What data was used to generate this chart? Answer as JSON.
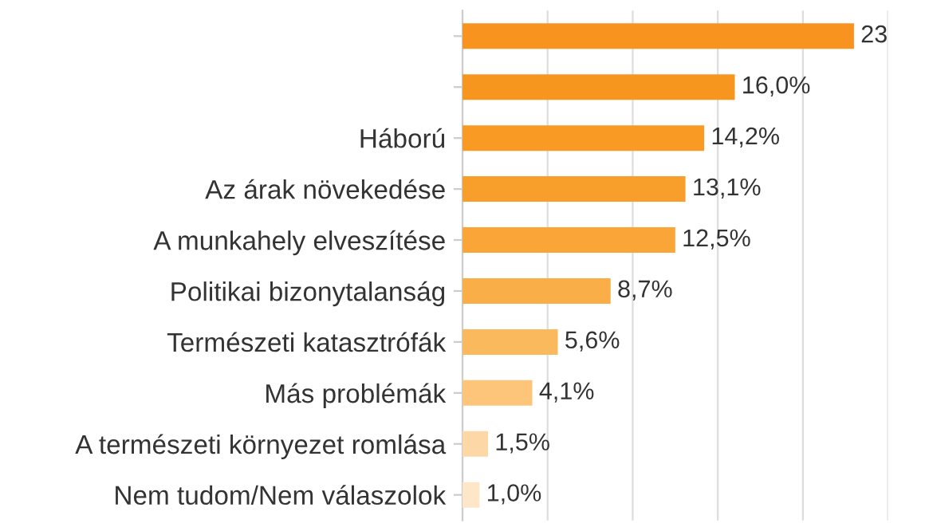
{
  "chart_data": {
    "type": "bar",
    "orientation": "horizontal",
    "categories": [
      null,
      null,
      "Háború",
      "Az árak növekedése",
      "A munkahely elveszítése",
      "Politikai bizonytalanság",
      "Természeti katasztrófák",
      "Más problémák",
      "A természeti környezet romlása",
      "Nem tudom/Nem válaszolok"
    ],
    "values": [
      23,
      16.0,
      14.2,
      13.1,
      12.5,
      8.7,
      5.6,
      4.1,
      1.5,
      1.0
    ],
    "value_labels": [
      "23",
      "16,0%",
      "14,2%",
      "13,1%",
      "12,5%",
      "8,7%",
      "5,6%",
      "4,1%",
      "1,5%",
      "1,0%"
    ],
    "colors": [
      "#f7931e",
      "#f7961f",
      "#f89a24",
      "#f89f2b",
      "#f9a537",
      "#faae48",
      "#fbb95e",
      "#fcc57a",
      "#fdd7a6",
      "#fee6c8"
    ],
    "xlim": [
      0,
      25
    ],
    "xticks": [
      {
        "value": 0,
        "label": null
      },
      {
        "value": 5,
        "label": null
      },
      {
        "value": 10,
        "label": null
      },
      {
        "value": 15,
        "label": null
      },
      {
        "value": 20,
        "label": null
      },
      {
        "value": 25,
        "label": null
      }
    ],
    "grid": "x"
  }
}
